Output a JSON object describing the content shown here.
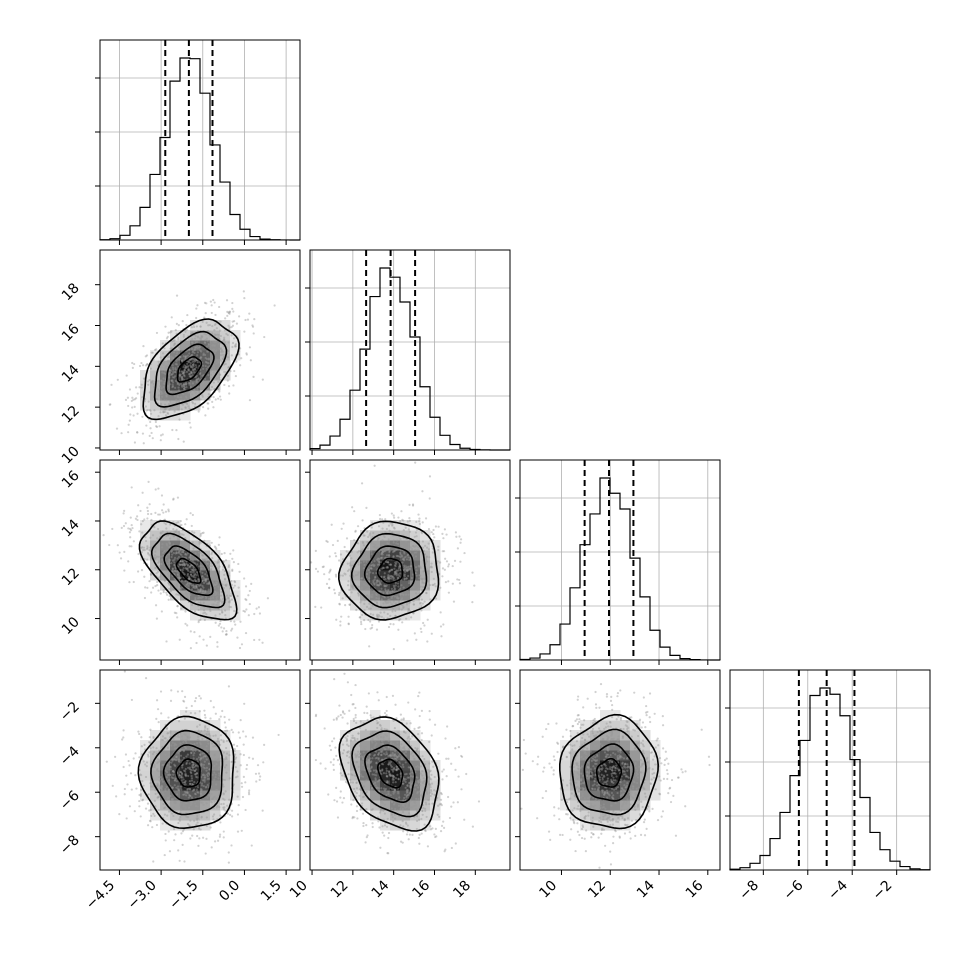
{
  "chart_data": {
    "type": "corner",
    "n_params": 4,
    "params": [
      {
        "ticks": [
          "−4.5",
          "−3.0",
          "−1.5",
          "0.0",
          "1.5"
        ],
        "tick_values": [
          -4.5,
          -3.0,
          -1.5,
          0.0,
          1.5
        ],
        "range": [
          -5.2,
          2.0
        ],
        "mean": -2.0,
        "sd": 0.85,
        "quantiles": [
          -2.85,
          -2.0,
          -1.15
        ]
      },
      {
        "ticks": [
          "10",
          "12",
          "14",
          "16",
          "18"
        ],
        "tick_values": [
          10,
          12,
          14,
          16,
          18
        ],
        "range": [
          9.9,
          19.7
        ],
        "mean": 13.85,
        "sd": 1.2,
        "quantiles": [
          12.65,
          13.85,
          15.05
        ]
      },
      {
        "ticks": [
          "10",
          "12",
          "14",
          "16"
        ],
        "tick_values": [
          10,
          12,
          14,
          16
        ],
        "range": [
          8.3,
          16.5
        ],
        "mean": 11.95,
        "sd": 1.0,
        "quantiles": [
          10.95,
          11.95,
          12.95
        ]
      },
      {
        "ticks": [
          "−8",
          "−6",
          "−4",
          "−2"
        ],
        "tick_values": [
          -8,
          -6,
          -4,
          -2
        ],
        "range": [
          -9.5,
          -0.5
        ],
        "mean": -5.15,
        "sd": 1.25,
        "quantiles": [
          -6.4,
          -5.15,
          -3.9
        ]
      }
    ],
    "correlations": [
      {
        "i": 1,
        "j": 0,
        "r": 0.5
      },
      {
        "i": 2,
        "j": 0,
        "r": -0.6
      },
      {
        "i": 2,
        "j": 1,
        "r": 0.05
      },
      {
        "i": 3,
        "j": 0,
        "r": 0.0
      },
      {
        "i": 3,
        "j": 1,
        "r": -0.3
      },
      {
        "i": 3,
        "j": 2,
        "r": 0.05
      }
    ],
    "contour_levels_sigma": [
      0.5,
      1.0,
      1.5,
      2.0
    ],
    "grid": true
  }
}
